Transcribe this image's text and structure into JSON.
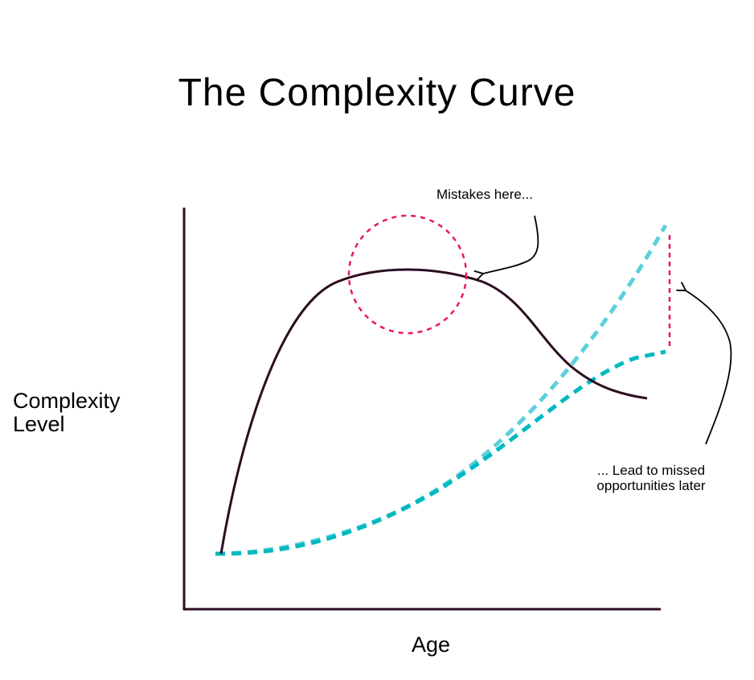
{
  "title": "The Complexity Curve",
  "y_axis_label": "Complexity Level",
  "x_axis_label": "Age",
  "annotations": {
    "top": "Mistakes here...",
    "right": "... Lead to missed opportunities later"
  },
  "colors": {
    "main_curve": "#2a0e22",
    "potential_curve": "#5bd0dc",
    "actual_curve": "#00b9c0",
    "highlight": "#e8185a",
    "axis": "#2a0e22"
  }
}
